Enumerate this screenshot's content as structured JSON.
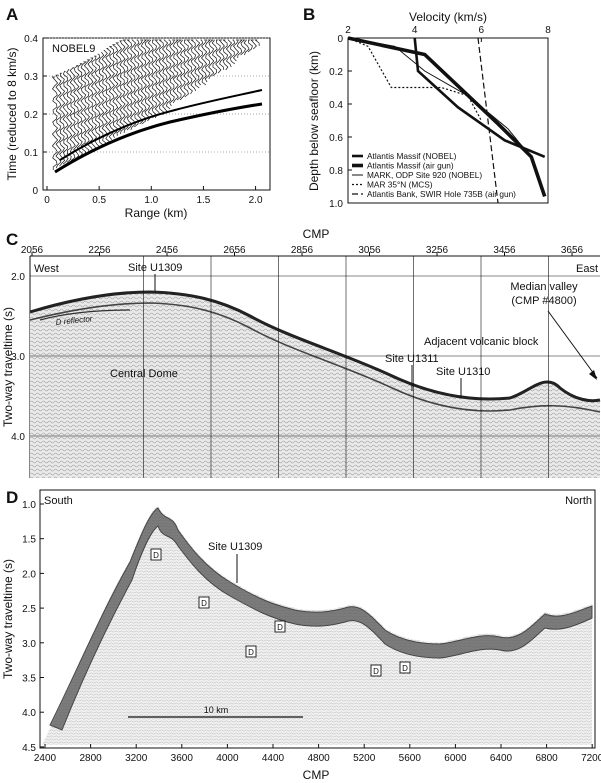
{
  "figure": {
    "panelA": {
      "letter": "A",
      "profile_label": "NOBEL9",
      "xlabel": "Range (km)",
      "ylabel": "Time  (reduced to 8 km/s)",
      "x_ticks": [
        "0",
        "0.5",
        "1.0",
        "1.5",
        "2.0"
      ],
      "y_ticks": [
        "0",
        "0.1",
        "0.2",
        "0.3",
        "0.4"
      ]
    },
    "panelB": {
      "letter": "B",
      "xlabel": "Velocity (km/s)",
      "ylabel": "Depth below seafloor (km)",
      "x_ticks": [
        "2",
        "4",
        "6",
        "8"
      ],
      "y_ticks": [
        "0",
        "0.2",
        "0.4",
        "0.6",
        "0.8",
        "1.0"
      ],
      "legend": [
        "Atlantis Massif (NOBEL)",
        "Atlantis Massif (air gun)",
        "MARK, ODP Site 920 (NOBEL)",
        "MAR 35°N (MCS)",
        "Atlantis Bank, SWIR Hole 735B (air gun)"
      ]
    },
    "panelC": {
      "letter": "C",
      "top_axis_label": "CMP",
      "cmp_ticks": [
        "2056",
        "2256",
        "2456",
        "2656",
        "2856",
        "3056",
        "3256",
        "3456",
        "3656"
      ],
      "y_ticks": [
        "2.0",
        "3.0",
        "4.0"
      ],
      "ylabel": "Two-way traveltime (s)",
      "west": "West",
      "east": "East",
      "site_u1309": "Site U1309",
      "site_u1311": "Site U1311",
      "site_u1310": "Site U1310",
      "d_reflector": "D reflector",
      "central_dome": "Central Dome",
      "adjacent_block": "Adjacent volcanic block",
      "median_valley_1": "Median valley",
      "median_valley_2": "(CMP #4800)"
    },
    "panelD": {
      "letter": "D",
      "south": "South",
      "north": "North",
      "site": "Site U1309",
      "d_markers": [
        "D",
        "D",
        "D",
        "D",
        "D",
        "D"
      ],
      "scale_bar": "10 km",
      "xlabel": "CMP",
      "ylabel": "Two-way traveltime (s)",
      "x_ticks": [
        "2400",
        "2800",
        "3200",
        "3600",
        "4000",
        "4400",
        "4800",
        "5200",
        "5600",
        "6000",
        "6400",
        "6800",
        "7200"
      ],
      "y_ticks": [
        "1.0",
        "1.5",
        "2.0",
        "2.5",
        "3.0",
        "3.5",
        "4.0",
        "4.5"
      ]
    }
  },
  "chart_data": [
    {
      "type": "line",
      "title": "",
      "xlabel": "Velocity (km/s)",
      "ylabel": "Depth below seafloor (km)",
      "xlim": [
        2,
        8
      ],
      "ylim": [
        1.0,
        0
      ],
      "legend_position": "bottom-left",
      "series": [
        {
          "name": "Atlantis Massif (NOBEL)",
          "style": "thick solid",
          "x": [
            4.0,
            4.1,
            5.3,
            6.7,
            7.9
          ],
          "y": [
            0,
            0.2,
            0.42,
            0.62,
            0.72
          ]
        },
        {
          "name": "Atlantis Massif (air gun)",
          "style": "very thick solid",
          "x": [
            2.0,
            4.3,
            6.5,
            7.5,
            7.9
          ],
          "y": [
            0,
            0.1,
            0.52,
            0.72,
            0.96
          ]
        },
        {
          "name": "MARK, ODP Site 920 (NOBEL)",
          "style": "thin solid",
          "x": [
            2.0,
            3.4,
            4.3,
            5.6,
            6.8,
            7.4
          ],
          "y": [
            0,
            0.05,
            0.2,
            0.35,
            0.55,
            0.7
          ]
        },
        {
          "name": "MAR 35°N (MCS)",
          "style": "dotted",
          "x": [
            2.0,
            2.6,
            3.3,
            4.8,
            5.6,
            6.0
          ],
          "y": [
            0,
            0.05,
            0.3,
            0.3,
            0.35,
            0.5
          ]
        },
        {
          "name": "Atlantis Bank, SWIR Hole 735B (air gun)",
          "style": "dashed",
          "x": [
            5.9,
            6.5
          ],
          "y": [
            0,
            1.0
          ]
        }
      ]
    }
  ]
}
